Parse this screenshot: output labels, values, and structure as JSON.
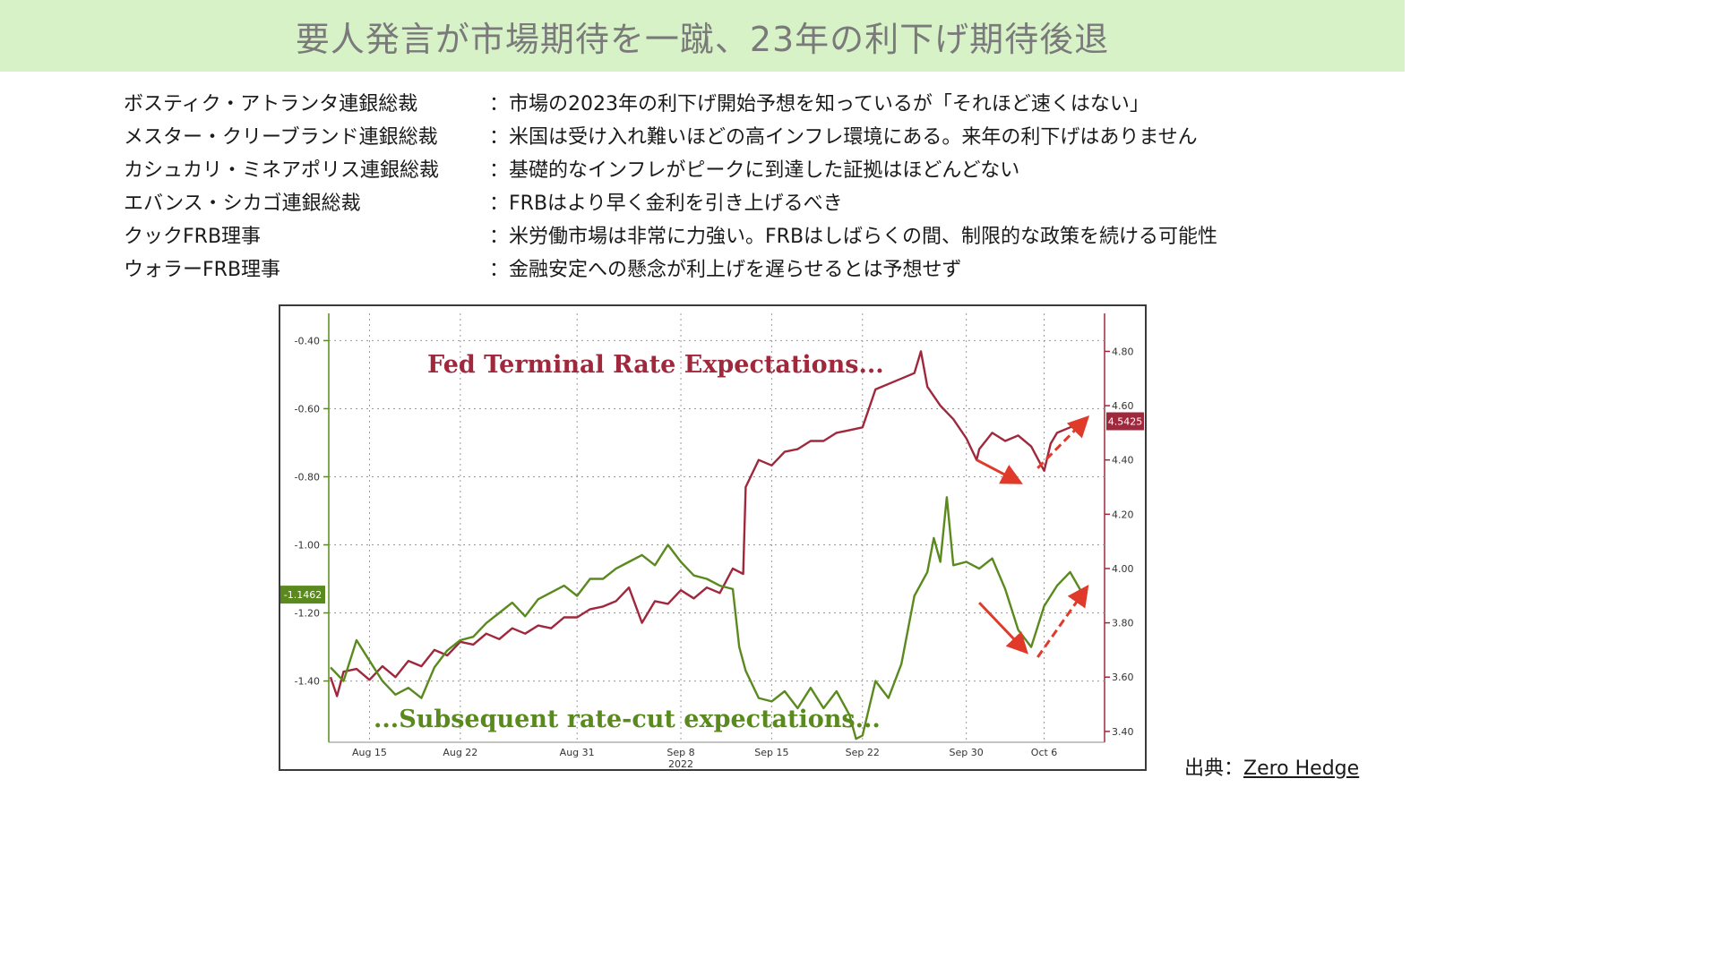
{
  "banner": {
    "title": "要人発言が市場期待を一蹴、23年の利下げ期待後退"
  },
  "quotes": [
    {
      "speaker": "ボスティク・アトランタ連銀総裁",
      "text": "：市場の2023年の利下げ開始予想を知っているが「それほど速くはない」"
    },
    {
      "speaker": "メスター・クリーブランド連銀総裁",
      "text": "：米国は受け入れ難いほどの高インフレ環境にある。来年の利下げはありません"
    },
    {
      "speaker": "カシュカリ・ミネアポリス連銀総裁",
      "text": "：基礎的なインフレがピークに到達した証拠はほどんどない"
    },
    {
      "speaker": "エバンス・シカゴ連銀総裁",
      "text": "：FRBはより早く金利を引き上げるべき"
    },
    {
      "speaker": "クックFRB理事",
      "text": "：米労働市場は非常に力強い。FRBはしばらくの間、制限的な政策を続ける可能性"
    },
    {
      "speaker": "ウォラーFRB理事",
      "text": "：金融安定への懸念が利上げを遅らせるとは予想せず"
    }
  ],
  "source": {
    "label": "出典：",
    "link_text": "Zero Hedge"
  },
  "chart_data": {
    "type": "line",
    "annotations": [
      "Fed Terminal Rate Expectations...",
      "...Subsequent rate-cut expectations..."
    ],
    "x_tick_labels": [
      "Aug 15",
      "Aug 22",
      "Aug 31",
      "Sep 8",
      "Sep 15",
      "Sep 22",
      "Sep 30",
      "Oct 6"
    ],
    "x_year_label": "2022",
    "x_tick_days": [
      3,
      10,
      19,
      27,
      34,
      41,
      49,
      55
    ],
    "x_range_days": [
      0,
      58
    ],
    "y_left": {
      "ticks": [
        "-0.40",
        "-0.60",
        "-0.80",
        "-1.00",
        "-1.20",
        "-1.40"
      ],
      "tick_values": [
        -0.4,
        -0.6,
        -0.8,
        -1.0,
        -1.2,
        -1.4
      ],
      "range": [
        -1.58,
        -0.32
      ],
      "last_value_label": "-1.1462",
      "last_value": -1.1462
    },
    "y_right": {
      "ticks": [
        "4.80",
        "4.60",
        "4.40",
        "4.20",
        "4.00",
        "3.80",
        "3.60",
        "3.40"
      ],
      "tick_values": [
        4.8,
        4.6,
        4.4,
        4.2,
        4.0,
        3.8,
        3.6,
        3.4
      ],
      "range": [
        3.36,
        4.94
      ],
      "last_value_label": "4.5425",
      "last_value": 4.5425
    },
    "grid": true,
    "series": [
      {
        "axis": "right",
        "color": "#a0283c",
        "points": [
          [
            0,
            3.6
          ],
          [
            0.5,
            3.53
          ],
          [
            1,
            3.62
          ],
          [
            2,
            3.63
          ],
          [
            3,
            3.59
          ],
          [
            4,
            3.64
          ],
          [
            5,
            3.6
          ],
          [
            6,
            3.66
          ],
          [
            7,
            3.64
          ],
          [
            8,
            3.7
          ],
          [
            9,
            3.68
          ],
          [
            10,
            3.73
          ],
          [
            11,
            3.72
          ],
          [
            12,
            3.76
          ],
          [
            13,
            3.74
          ],
          [
            14,
            3.78
          ],
          [
            15,
            3.76
          ],
          [
            16,
            3.79
          ],
          [
            17,
            3.78
          ],
          [
            18,
            3.82
          ],
          [
            19,
            3.82
          ],
          [
            20,
            3.85
          ],
          [
            21,
            3.86
          ],
          [
            22,
            3.88
          ],
          [
            23,
            3.93
          ],
          [
            24,
            3.8
          ],
          [
            25,
            3.88
          ],
          [
            26,
            3.87
          ],
          [
            27,
            3.92
          ],
          [
            28,
            3.89
          ],
          [
            29,
            3.93
          ],
          [
            30,
            3.91
          ],
          [
            31,
            4.0
          ],
          [
            31.8,
            3.98
          ],
          [
            32,
            4.3
          ],
          [
            33,
            4.4
          ],
          [
            34,
            4.38
          ],
          [
            35,
            4.43
          ],
          [
            36,
            4.44
          ],
          [
            37,
            4.47
          ],
          [
            38,
            4.47
          ],
          [
            39,
            4.5
          ],
          [
            40,
            4.51
          ],
          [
            41,
            4.52
          ],
          [
            42,
            4.66
          ],
          [
            43,
            4.68
          ],
          [
            44,
            4.7
          ],
          [
            45,
            4.72
          ],
          [
            45.5,
            4.8
          ],
          [
            46,
            4.67
          ],
          [
            47,
            4.6
          ],
          [
            48,
            4.55
          ],
          [
            49,
            4.48
          ],
          [
            49.8,
            4.4
          ],
          [
            50,
            4.44
          ],
          [
            51,
            4.5
          ],
          [
            52,
            4.47
          ],
          [
            53,
            4.49
          ],
          [
            54,
            4.45
          ],
          [
            55,
            4.36
          ],
          [
            55.5,
            4.46
          ],
          [
            56,
            4.5
          ],
          [
            57,
            4.52
          ],
          [
            58,
            4.5425
          ]
        ]
      },
      {
        "axis": "left",
        "color": "#5a8a1e",
        "points": [
          [
            0,
            -1.36
          ],
          [
            1,
            -1.4
          ],
          [
            2,
            -1.28
          ],
          [
            3,
            -1.34
          ],
          [
            4,
            -1.4
          ],
          [
            5,
            -1.44
          ],
          [
            6,
            -1.42
          ],
          [
            7,
            -1.45
          ],
          [
            8,
            -1.36
          ],
          [
            9,
            -1.31
          ],
          [
            10,
            -1.28
          ],
          [
            11,
            -1.27
          ],
          [
            12,
            -1.23
          ],
          [
            13,
            -1.2
          ],
          [
            14,
            -1.17
          ],
          [
            15,
            -1.21
          ],
          [
            16,
            -1.16
          ],
          [
            17,
            -1.14
          ],
          [
            18,
            -1.12
          ],
          [
            19,
            -1.15
          ],
          [
            20,
            -1.1
          ],
          [
            21,
            -1.1
          ],
          [
            22,
            -1.07
          ],
          [
            23,
            -1.05
          ],
          [
            24,
            -1.03
          ],
          [
            25,
            -1.06
          ],
          [
            26,
            -1.0
          ],
          [
            27,
            -1.05
          ],
          [
            28,
            -1.09
          ],
          [
            29,
            -1.1
          ],
          [
            30,
            -1.12
          ],
          [
            31,
            -1.13
          ],
          [
            31.5,
            -1.3
          ],
          [
            32,
            -1.37
          ],
          [
            33,
            -1.45
          ],
          [
            34,
            -1.46
          ],
          [
            35,
            -1.43
          ],
          [
            36,
            -1.48
          ],
          [
            37,
            -1.42
          ],
          [
            38,
            -1.48
          ],
          [
            39,
            -1.43
          ],
          [
            40,
            -1.5
          ],
          [
            40.5,
            -1.57
          ],
          [
            41,
            -1.56
          ],
          [
            42,
            -1.4
          ],
          [
            43,
            -1.45
          ],
          [
            44,
            -1.35
          ],
          [
            45,
            -1.15
          ],
          [
            46,
            -1.08
          ],
          [
            46.5,
            -0.98
          ],
          [
            47,
            -1.05
          ],
          [
            47.5,
            -0.86
          ],
          [
            48,
            -1.06
          ],
          [
            49,
            -1.05
          ],
          [
            50,
            -1.07
          ],
          [
            51,
            -1.04
          ],
          [
            52,
            -1.13
          ],
          [
            53,
            -1.25
          ],
          [
            54,
            -1.3
          ],
          [
            55,
            -1.18
          ],
          [
            56,
            -1.12
          ],
          [
            57,
            -1.08
          ],
          [
            58,
            -1.1462
          ]
        ]
      }
    ],
    "arrows": [
      {
        "axis": "right",
        "from": [
          49.8,
          4.4
        ],
        "to": [
          53,
          4.32
        ],
        "style": "solid"
      },
      {
        "axis": "right",
        "from": [
          54.5,
          4.37
        ],
        "to": [
          58.2,
          4.55
        ],
        "style": "dashed"
      },
      {
        "axis": "left",
        "from": [
          50,
          -1.17
        ],
        "to": [
          53.5,
          -1.31
        ],
        "style": "solid"
      },
      {
        "axis": "left",
        "from": [
          54.5,
          -1.33
        ],
        "to": [
          58.2,
          -1.13
        ],
        "style": "dashed"
      }
    ]
  }
}
